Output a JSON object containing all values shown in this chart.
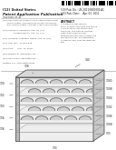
{
  "bg_color": "#ffffff",
  "text_color": "#444444",
  "dark_text": "#222222",
  "diagram": {
    "front_fill": "#eeeeee",
    "top_fill": "#d8d8d8",
    "right_fill": "#c8c8c8",
    "edge_color": "#555555",
    "layer_color": "#888888",
    "dome_fill": "#cccccc",
    "dome_edge": "#666666",
    "left_panel_fill": "#bbbbbb",
    "left_panel_edge": "#555555",
    "num_dome_rows": 5,
    "num_dome_cols": 5,
    "num_layers": 7,
    "left_labels": [
      "130",
      "132",
      "133",
      "134",
      "136"
    ],
    "right_labels": [
      "1340",
      "1308",
      "1304",
      "1302",
      "1306",
      "1308",
      "133"
    ],
    "top_labels": [
      "138",
      "140"
    ],
    "bottom_label": "133"
  }
}
